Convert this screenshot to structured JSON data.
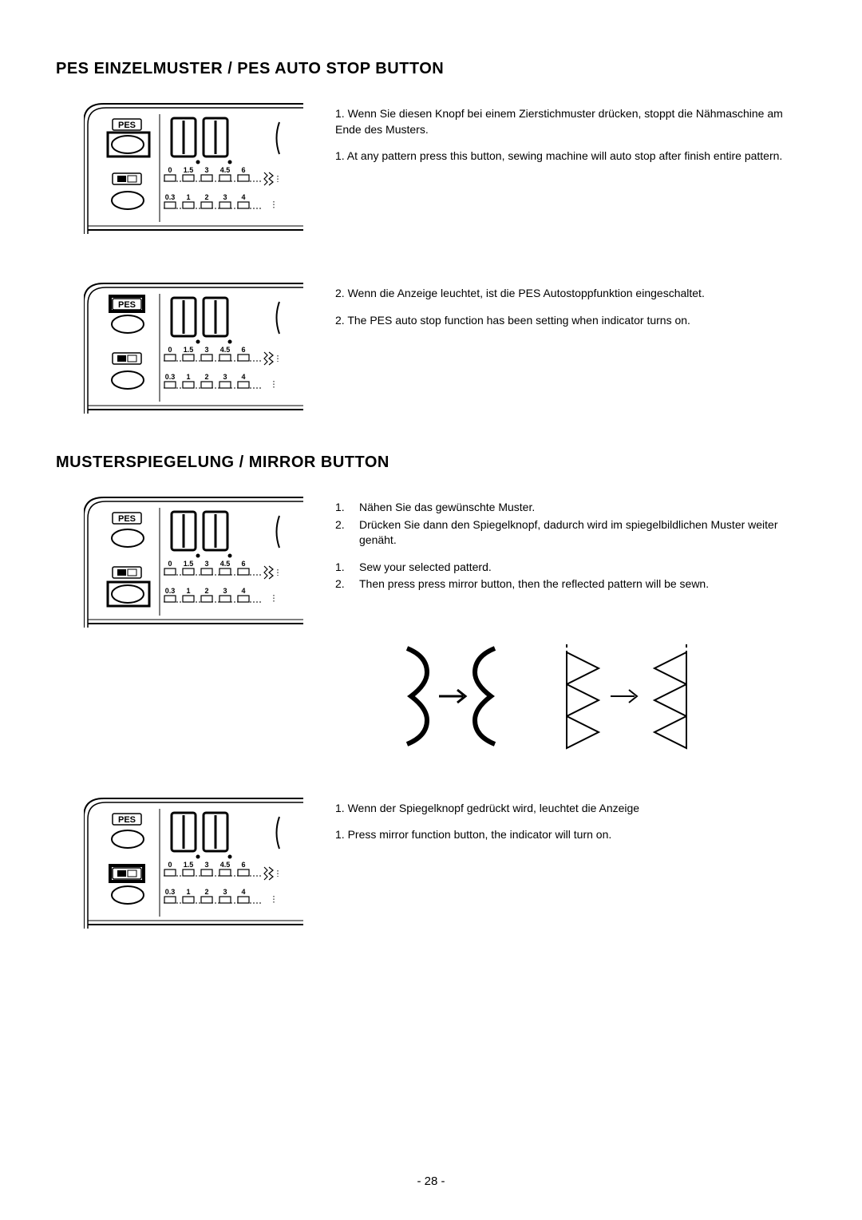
{
  "page_number": "- 28 -",
  "colors": {
    "text": "#000000",
    "bg": "#ffffff",
    "stroke": "#000000"
  },
  "heading1": "PES EINZELMUSTER / PES AUTO STOP BUTTON",
  "heading2": "MUSTERSPIEGELUNG / MIRROR BUTTON",
  "panel_labels": {
    "pes": "PES",
    "row1_ticks": [
      "0",
      "1.5",
      "3",
      "4.5",
      "6"
    ],
    "row2_ticks": [
      "0.3",
      "1",
      "2",
      "3",
      "4"
    ]
  },
  "sec1a_de": "1. Wenn Sie diesen Knopf bei einem Zierstichmuster drücken, stoppt die Nähmaschine am Ende des Musters.",
  "sec1a_en": "1. At any pattern press this button, sewing machine will auto stop after finish entire pattern.",
  "sec1b_de": "2. Wenn die Anzeige leuchtet, ist die PES Autostoppfunktion eingeschaltet.",
  "sec1b_en": "2. The PES auto stop function has been setting when indicator turns on.",
  "sec2a_de": [
    {
      "n": "1.",
      "t": "Nähen Sie das gewünschte Muster."
    },
    {
      "n": "2.",
      "t": "Drücken Sie dann den Spiegelknopf, dadurch wird im spiegelbildlichen Muster weiter genäht."
    }
  ],
  "sec2a_en": [
    {
      "n": "1.",
      "t": "Sew your selected patterd."
    },
    {
      "n": "2.",
      "t": "Then press press mirror button, then the reflected pattern    will be sewn."
    }
  ],
  "sec2b_de": "1. Wenn der Spiegelknopf gedrückt wird, leuchtet die Anzeige",
  "sec2b_en": "1. Press mirror function button, the indicator will turn on."
}
